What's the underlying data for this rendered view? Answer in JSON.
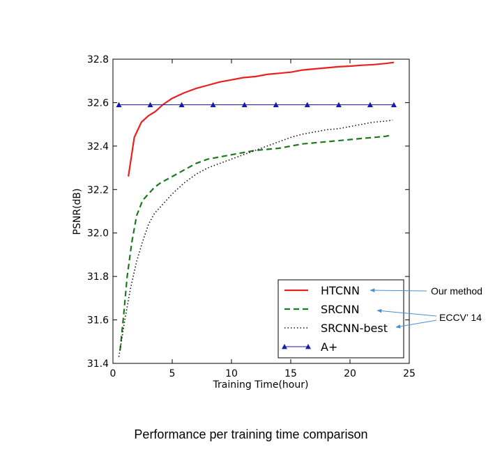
{
  "chart_data": {
    "type": "line",
    "title": "",
    "xlabel": "Training Time(hour)",
    "ylabel": "PSNR(dB)",
    "xlim": [
      0,
      25
    ],
    "ylim": [
      31.4,
      32.8
    ],
    "xticks": [
      0,
      5,
      10,
      15,
      20,
      25
    ],
    "yticks": [
      "31.4",
      "31.6",
      "31.8",
      "32.0",
      "32.2",
      "32.4",
      "32.6",
      "32.8"
    ],
    "grid": false,
    "legend_position": "bottom-right",
    "series": [
      {
        "name": "HTCNN",
        "color": "#e8201e",
        "style": "solid",
        "marker": "none",
        "x": [
          1.3,
          1.8,
          2.4,
          3.0,
          3.6,
          4.2,
          5.0,
          6.0,
          7.0,
          8.0,
          9.0,
          10.0,
          11.0,
          12.0,
          13.0,
          14.0,
          15.0,
          16.0,
          17.0,
          18.0,
          19.0,
          20.0,
          21.0,
          22.0,
          23.0,
          23.7
        ],
        "y": [
          32.26,
          32.44,
          32.51,
          32.54,
          32.56,
          32.59,
          32.62,
          32.645,
          32.665,
          32.68,
          32.695,
          32.705,
          32.715,
          32.72,
          32.73,
          32.735,
          32.74,
          32.75,
          32.755,
          32.76,
          32.765,
          32.768,
          32.772,
          32.775,
          32.78,
          32.785
        ]
      },
      {
        "name": "SRCNN",
        "color": "#1a7a1a",
        "style": "dashed",
        "marker": "none",
        "x": [
          0.6,
          0.9,
          1.2,
          1.6,
          2.0,
          2.5,
          3.0,
          3.5,
          4.0,
          5.0,
          6.0,
          7.0,
          8.0,
          9.0,
          10.0,
          11.0,
          12.0,
          13.0,
          14.0,
          15.0,
          16.0,
          17.0,
          18.0,
          19.0,
          20.0,
          21.0,
          22.0,
          23.0,
          23.5
        ],
        "y": [
          31.46,
          31.62,
          31.8,
          31.96,
          32.08,
          32.15,
          32.18,
          32.21,
          32.23,
          32.26,
          32.29,
          32.32,
          32.34,
          32.35,
          32.36,
          32.37,
          32.38,
          32.385,
          32.39,
          32.4,
          32.41,
          32.415,
          32.42,
          32.425,
          32.43,
          32.435,
          32.44,
          32.445,
          32.45
        ]
      },
      {
        "name": "SRCNN-best",
        "color": "#111111",
        "style": "dotted",
        "marker": "none",
        "x": [
          0.5,
          1.0,
          1.5,
          2.0,
          2.5,
          3.0,
          3.5,
          4.0,
          5.0,
          6.0,
          7.0,
          8.0,
          9.0,
          10.0,
          11.0,
          12.0,
          13.0,
          14.0,
          15.0,
          16.0,
          17.0,
          18.0,
          19.0,
          20.0,
          21.0,
          22.0,
          23.0,
          23.6
        ],
        "y": [
          31.43,
          31.6,
          31.75,
          31.87,
          31.96,
          32.04,
          32.09,
          32.12,
          32.18,
          32.23,
          32.27,
          32.3,
          32.32,
          32.34,
          32.36,
          32.38,
          32.4,
          32.42,
          32.44,
          32.455,
          32.465,
          32.475,
          32.48,
          32.49,
          32.5,
          32.51,
          32.515,
          32.52
        ]
      },
      {
        "name": "A+",
        "color": "#1a1aaa",
        "style": "solid",
        "marker": "triangle",
        "x": [
          0.5,
          3.15,
          5.8,
          8.45,
          11.1,
          13.75,
          16.4,
          19.05,
          21.7,
          23.7
        ],
        "y": [
          32.59,
          32.59,
          32.59,
          32.59,
          32.59,
          32.59,
          32.59,
          32.59,
          32.59,
          32.59
        ]
      }
    ]
  },
  "annotations": {
    "our_method": "Our method",
    "eccv": "ECCV’ 14"
  },
  "caption": "Performance per training time comparison"
}
